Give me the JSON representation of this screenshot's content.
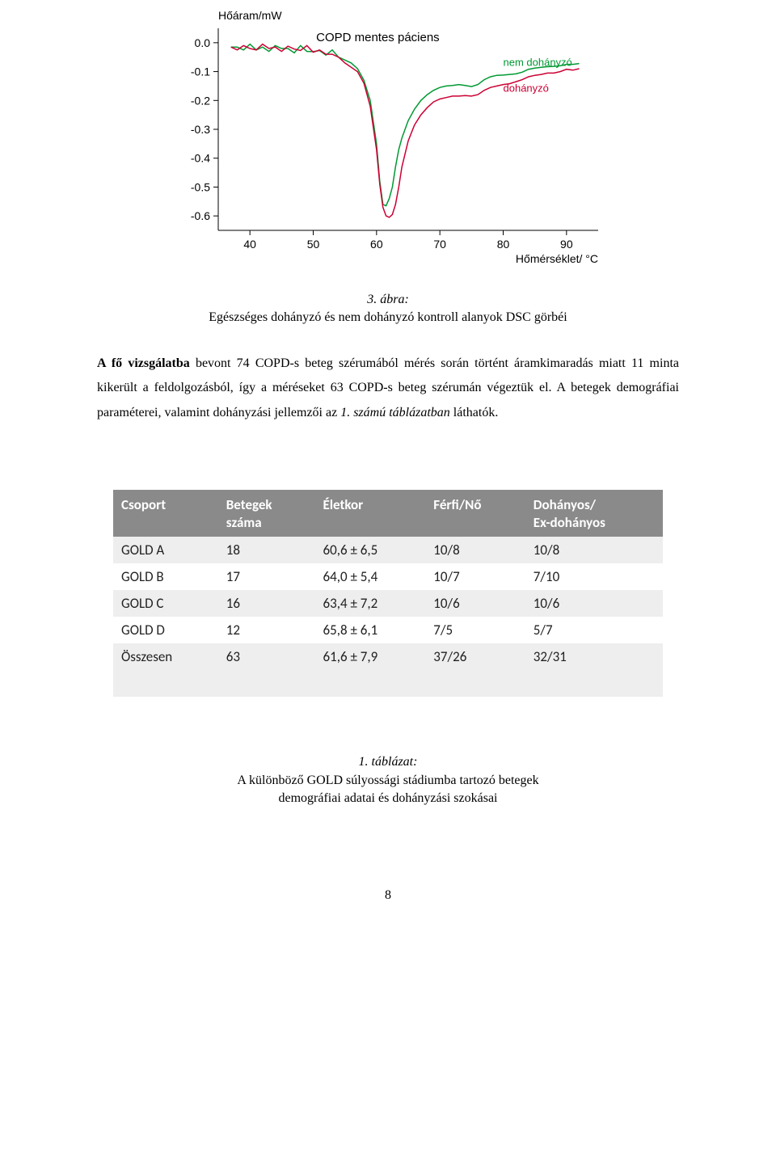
{
  "chart": {
    "type": "line",
    "y_axis_title": "Hőáram/mW",
    "x_axis_title": "Hőmérséklet/ °C",
    "plot_title": "COPD mentes páciens",
    "background_color": "#ffffff",
    "axis_color": "#000000",
    "text_color": "#000000",
    "xlim": [
      35,
      95
    ],
    "ylim": [
      -0.65,
      0.05
    ],
    "xticks": [
      40,
      50,
      60,
      70,
      80,
      90
    ],
    "yticks": [
      0.0,
      -0.1,
      -0.2,
      -0.3,
      -0.4,
      -0.5,
      -0.6
    ],
    "ytick_labels": [
      "0.0",
      "-0.1",
      "-0.2",
      "-0.3",
      "-0.4",
      "-0.5",
      "-0.6"
    ],
    "xtick_labels": [
      "40",
      "50",
      "60",
      "70",
      "80",
      "90"
    ],
    "line_width": 1.5,
    "series": [
      {
        "name": "nem dohányzó",
        "color": "#009933",
        "label_xy": [
          80,
          -0.08
        ],
        "data": [
          [
            37,
            -0.015
          ],
          [
            38,
            -0.015
          ],
          [
            39,
            -0.025
          ],
          [
            40,
            -0.005
          ],
          [
            41,
            -0.025
          ],
          [
            42,
            -0.015
          ],
          [
            43,
            -0.03
          ],
          [
            44,
            -0.01
          ],
          [
            45,
            -0.02
          ],
          [
            46,
            -0.02
          ],
          [
            47,
            -0.035
          ],
          [
            48,
            -0.01
          ],
          [
            49,
            -0.03
          ],
          [
            50,
            -0.031
          ],
          [
            51,
            -0.027
          ],
          [
            52,
            -0.043
          ],
          [
            53,
            -0.025
          ],
          [
            54,
            -0.05
          ],
          [
            55,
            -0.06
          ],
          [
            56,
            -0.07
          ],
          [
            57,
            -0.09
          ],
          [
            58,
            -0.13
          ],
          [
            59,
            -0.2
          ],
          [
            60,
            -0.35
          ],
          [
            60.5,
            -0.48
          ],
          [
            61,
            -0.56
          ],
          [
            61.5,
            -0.565
          ],
          [
            62,
            -0.54
          ],
          [
            62.5,
            -0.5
          ],
          [
            63,
            -0.43
          ],
          [
            63.5,
            -0.37
          ],
          [
            64,
            -0.33
          ],
          [
            65,
            -0.27
          ],
          [
            66,
            -0.23
          ],
          [
            67,
            -0.2
          ],
          [
            68,
            -0.18
          ],
          [
            69,
            -0.165
          ],
          [
            70,
            -0.155
          ],
          [
            71,
            -0.15
          ],
          [
            72,
            -0.148
          ],
          [
            73,
            -0.145
          ],
          [
            74,
            -0.148
          ],
          [
            75,
            -0.152
          ],
          [
            76,
            -0.145
          ],
          [
            77,
            -0.128
          ],
          [
            78,
            -0.118
          ],
          [
            79,
            -0.113
          ],
          [
            80,
            -0.112
          ],
          [
            81,
            -0.11
          ],
          [
            82,
            -0.108
          ],
          [
            83,
            -0.102
          ],
          [
            84,
            -0.092
          ],
          [
            85,
            -0.088
          ],
          [
            86,
            -0.085
          ],
          [
            87,
            -0.083
          ],
          [
            88,
            -0.082
          ],
          [
            89,
            -0.08
          ],
          [
            90,
            -0.075
          ],
          [
            91,
            -0.075
          ],
          [
            92,
            -0.072
          ]
        ]
      },
      {
        "name": "dohányzó",
        "color": "#cc0033",
        "label_xy": [
          80,
          -0.17
        ],
        "data": [
          [
            37,
            -0.015
          ],
          [
            38,
            -0.025
          ],
          [
            39,
            -0.01
          ],
          [
            40,
            -0.02
          ],
          [
            41,
            -0.025
          ],
          [
            42,
            -0.005
          ],
          [
            43,
            -0.02
          ],
          [
            44,
            -0.015
          ],
          [
            45,
            -0.03
          ],
          [
            46,
            -0.012
          ],
          [
            47,
            -0.022
          ],
          [
            48,
            -0.027
          ],
          [
            49,
            -0.01
          ],
          [
            50,
            -0.033
          ],
          [
            51,
            -0.025
          ],
          [
            52,
            -0.04
          ],
          [
            53,
            -0.04
          ],
          [
            54,
            -0.05
          ],
          [
            55,
            -0.07
          ],
          [
            56,
            -0.085
          ],
          [
            57,
            -0.1
          ],
          [
            58,
            -0.14
          ],
          [
            59,
            -0.22
          ],
          [
            60,
            -0.37
          ],
          [
            60.5,
            -0.49
          ],
          [
            61,
            -0.57
          ],
          [
            61.5,
            -0.6
          ],
          [
            62,
            -0.605
          ],
          [
            62.5,
            -0.595
          ],
          [
            63,
            -0.56
          ],
          [
            63.5,
            -0.5
          ],
          [
            64,
            -0.43
          ],
          [
            65,
            -0.34
          ],
          [
            66,
            -0.285
          ],
          [
            67,
            -0.25
          ],
          [
            68,
            -0.225
          ],
          [
            69,
            -0.205
          ],
          [
            70,
            -0.195
          ],
          [
            71,
            -0.19
          ],
          [
            72,
            -0.185
          ],
          [
            73,
            -0.185
          ],
          [
            74,
            -0.183
          ],
          [
            75,
            -0.185
          ],
          [
            76,
            -0.18
          ],
          [
            77,
            -0.165
          ],
          [
            78,
            -0.155
          ],
          [
            79,
            -0.15
          ],
          [
            80,
            -0.145
          ],
          [
            81,
            -0.142
          ],
          [
            82,
            -0.135
          ],
          [
            83,
            -0.128
          ],
          [
            84,
            -0.118
          ],
          [
            85,
            -0.113
          ],
          [
            86,
            -0.11
          ],
          [
            87,
            -0.105
          ],
          [
            88,
            -0.105
          ],
          [
            89,
            -0.1
          ],
          [
            90,
            -0.092
          ],
          [
            91,
            -0.095
          ],
          [
            92,
            -0.09
          ]
        ]
      }
    ]
  },
  "figure_caption": {
    "label": "3. ábra:",
    "text": "Egészséges dohányzó és nem dohányzó kontroll alanyok DSC görbéi"
  },
  "paragraph": {
    "part1_bold": "A fő vizsgálatba",
    "part2": " bevont 74 COPD-s beteg szérumából mérés során történt áramkimaradás miatt 11 minta kikerült a feldolgozásból, így a méréseket 63 COPD-s beteg szérumán végeztük el. A betegek demográfiai paraméterei, valamint dohányzási jellemzői az ",
    "part3_italic": "1. számú táblázatban",
    "part4": " láthatók."
  },
  "table": {
    "header_bg": "#8a8a8a",
    "header_fg": "#ffffff",
    "row_odd_bg": "#eeeeee",
    "row_even_bg": "#ffffff",
    "text_color": "#222222",
    "columns": [
      {
        "key": "group",
        "label_line1": "Csoport",
        "label_line2": ""
      },
      {
        "key": "n",
        "label_line1": "Betegek",
        "label_line2": "száma"
      },
      {
        "key": "age",
        "label_line1": "Életkor",
        "label_line2": ""
      },
      {
        "key": "sex",
        "label_line1": "Férfi/Nő",
        "label_line2": ""
      },
      {
        "key": "smoke",
        "label_line1": "Dohányos/",
        "label_line2": "Ex-dohányos"
      }
    ],
    "rows": [
      {
        "group": "GOLD A",
        "n": "18",
        "age": "60,6 ± 6,5",
        "sex": "10/8",
        "smoke": "10/8"
      },
      {
        "group": "GOLD B",
        "n": "17",
        "age": "64,0  ± 5,4",
        "sex": "10/7",
        "smoke": "7/10"
      },
      {
        "group": "GOLD C",
        "n": "16",
        "age": "63,4 ± 7,2",
        "sex": "10/6",
        "smoke": "10/6"
      },
      {
        "group": "GOLD D",
        "n": "12",
        "age": "65,8 ± 6,1",
        "sex": "7/5",
        "smoke": "5/7"
      },
      {
        "group": "Összesen",
        "n": "63",
        "age": "61,6 ± 7,9",
        "sex": "37/26",
        "smoke": "32/31"
      }
    ]
  },
  "table_caption": {
    "label": "1.   táblázat:",
    "line1": "A különböző GOLD súlyossági stádiumba tartozó betegek",
    "line2": "demográfiai adatai és dohányzási szokásai"
  },
  "page_number": "8"
}
